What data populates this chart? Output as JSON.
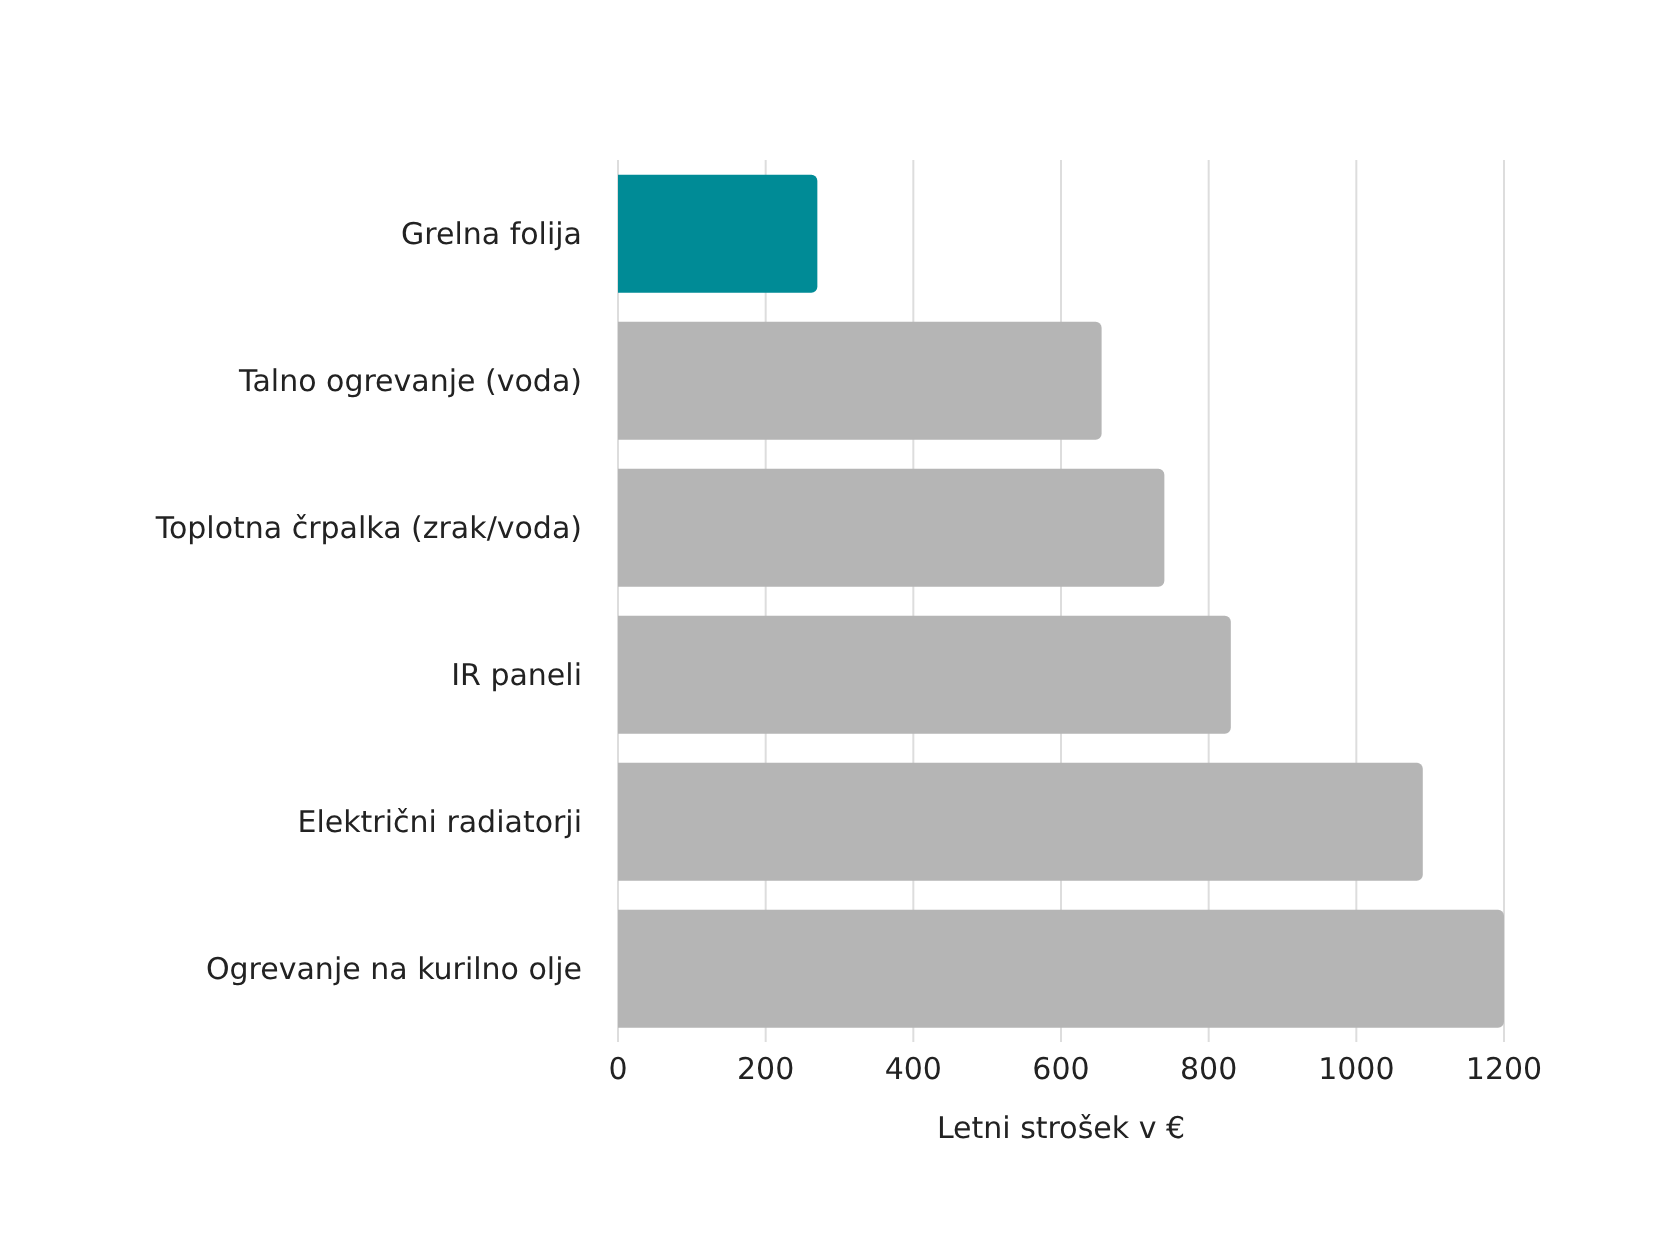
{
  "chart_data": {
    "type": "bar",
    "orientation": "horizontal",
    "xlabel": "Letni strošek v €",
    "categories": [
      "Grelna folija",
      "Talno ogrevanje (voda)",
      "Toplotna črpalka (zrak/voda)",
      "IR paneli",
      "Električni radiatorji",
      "Ogrevanje na kurilno olje"
    ],
    "values": [
      270,
      655,
      740,
      830,
      1090,
      1200
    ],
    "colors": [
      "#008b96",
      "#b5b5b5",
      "#b5b5b5",
      "#b5b5b5",
      "#b5b5b5",
      "#b5b5b5"
    ],
    "xlim": [
      0,
      1200
    ],
    "xticks": [
      0,
      200,
      400,
      600,
      800,
      1000,
      1200
    ],
    "grid": "x"
  }
}
